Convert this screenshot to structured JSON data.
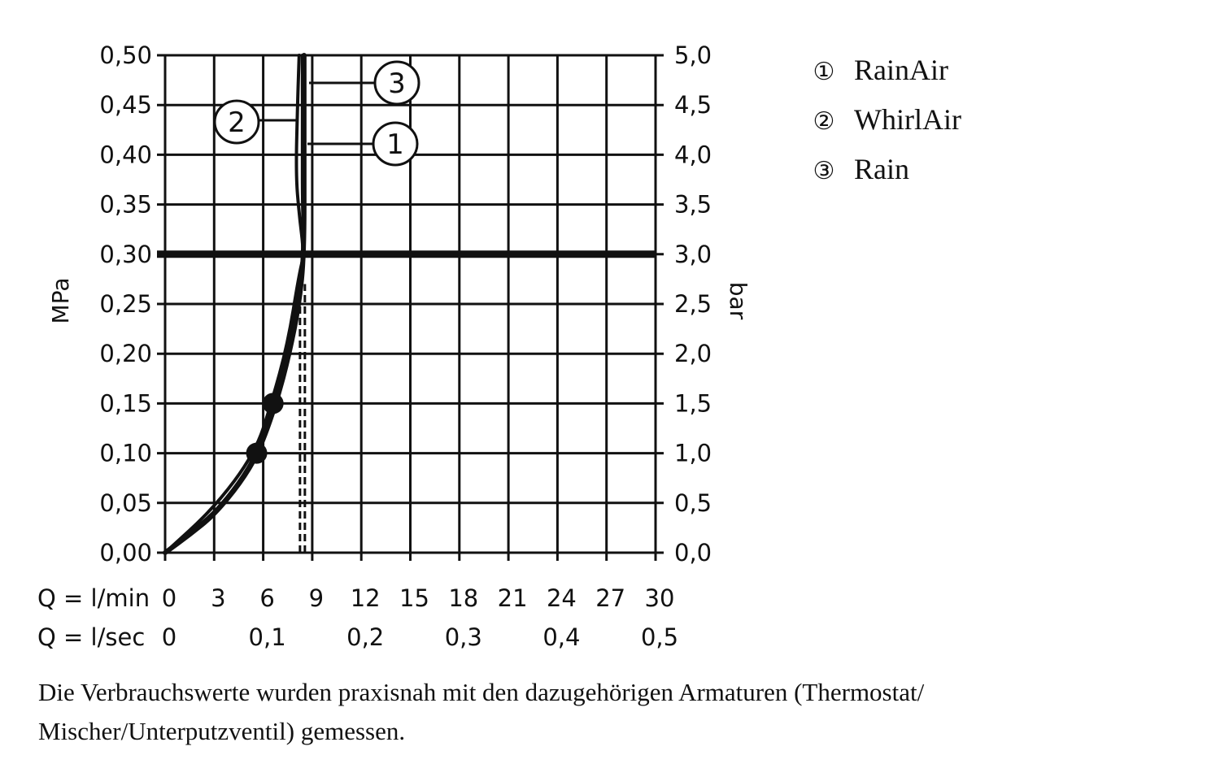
{
  "chart_data": {
    "type": "line",
    "y_left_label": "MPa",
    "y_right_label": "bar",
    "x_label_min": "Q = l/min",
    "x_label_sec": "Q = l/sec",
    "xlim": [
      0,
      30
    ],
    "ylim": [
      0,
      0.5
    ],
    "grid": true,
    "x_ticks_min": [
      "0",
      "3",
      "6",
      "9",
      "12",
      "15",
      "18",
      "21",
      "24",
      "27",
      "30"
    ],
    "x_ticks_sec": [
      {
        "q": 0,
        "label": "0"
      },
      {
        "q": 6,
        "label": "0,1"
      },
      {
        "q": 12,
        "label": "0,2"
      },
      {
        "q": 18,
        "label": "0,3"
      },
      {
        "q": 24,
        "label": "0,4"
      },
      {
        "q": 30,
        "label": "0,5"
      }
    ],
    "y_ticks_left": [
      "0,00",
      "0,05",
      "0,10",
      "0,15",
      "0,20",
      "0,25",
      "0,30",
      "0,35",
      "0,40",
      "0,45",
      "0,50"
    ],
    "y_ticks_right": [
      "0,0",
      "0,5",
      "1,0",
      "1,5",
      "2,0",
      "2,5",
      "3,0",
      "3,5",
      "4,0",
      "4,5",
      "5,0"
    ],
    "reference_line_mpa": 0.3,
    "dashed_line": {
      "x": 8.4,
      "y_max": 0.27
    },
    "markers": [
      {
        "x": 5.6,
        "y": 0.1
      },
      {
        "x": 6.6,
        "y": 0.15
      }
    ],
    "series": [
      {
        "name": "RainAir",
        "id": "1",
        "x": [
          0,
          1.5,
          3,
          4.5,
          5.6,
          6.6,
          7.4,
          8.0,
          8.5,
          8.4,
          8.4,
          8.4
        ],
        "y": [
          0,
          0.02,
          0.04,
          0.07,
          0.1,
          0.15,
          0.2,
          0.25,
          0.3,
          0.35,
          0.4,
          0.5
        ]
      },
      {
        "name": "WhirlAir",
        "id": "2",
        "x": [
          0,
          3,
          5.5,
          6.5,
          7.5,
          8.2,
          8.5,
          8.2,
          8.0,
          8.1,
          8.2
        ],
        "y": [
          0,
          0.045,
          0.1,
          0.15,
          0.21,
          0.28,
          0.3,
          0.34,
          0.38,
          0.45,
          0.5
        ]
      },
      {
        "name": "Rain",
        "id": "3",
        "x": [
          0,
          1.5,
          3,
          4.6,
          5.7,
          6.8,
          7.6,
          8.2,
          8.5,
          8.5,
          8.5
        ],
        "y": [
          0,
          0.018,
          0.038,
          0.07,
          0.1,
          0.15,
          0.2,
          0.25,
          0.3,
          0.4,
          0.5
        ]
      }
    ],
    "legend": [
      {
        "symbol": "①",
        "label": "RainAir"
      },
      {
        "symbol": "②",
        "label": "WhirlAir"
      },
      {
        "symbol": "③",
        "label": "Rain"
      }
    ],
    "legend_placement": "right",
    "callouts": [
      "3",
      "2",
      "1"
    ]
  },
  "footnote": {
    "line1": "Die Verbrauchswerte wurden praxisnah mit den dazugehörigen Armaturen (Thermostat/",
    "line2": "Mischer/Unterputzventil) gemessen."
  }
}
